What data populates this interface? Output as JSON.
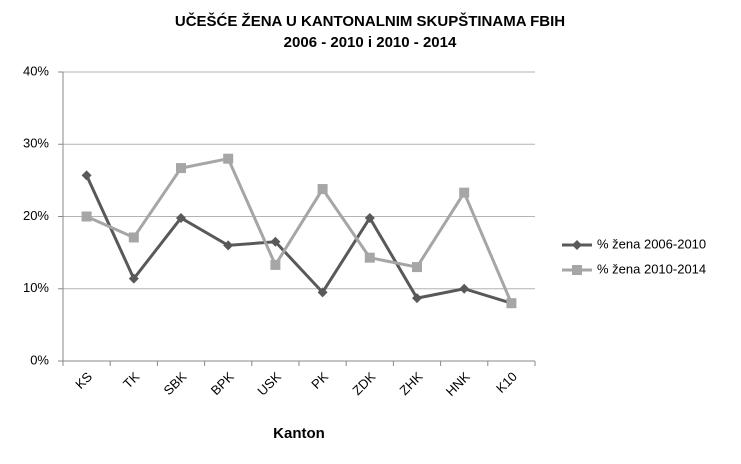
{
  "chart_data": {
    "type": "line",
    "title": [
      "UČEŠĆE ŽENA U KANTONALNIM  SKUPŠTINAMA  FBIH",
      "2006  - 2010  i 2010  - 2014"
    ],
    "x_label": "Kanton",
    "categories": [
      "KS",
      "TK",
      "SBK",
      "BPK",
      "USK",
      "PK",
      "ZDK",
      "ZHK",
      "HNK",
      "K10"
    ],
    "series": [
      {
        "name": "% žena 2006-2010",
        "color": "#595959",
        "marker": "diamond",
        "values": [
          25.7,
          11.4,
          19.8,
          16,
          16.5,
          9.5,
          19.8,
          8.7,
          10,
          8
        ]
      },
      {
        "name": "% žena 2010-2014",
        "color": "#a6a6a6",
        "marker": "square",
        "values": [
          20,
          17.1,
          26.7,
          28,
          13.3,
          23.8,
          14.3,
          13,
          23.3,
          8
        ]
      }
    ],
    "ylim": [
      0,
      40
    ],
    "yticks": [
      {
        "value": 0,
        "label": "0%"
      },
      {
        "value": 10,
        "label": "10%"
      },
      {
        "value": 20,
        "label": "20%"
      },
      {
        "value": 30,
        "label": "30%"
      },
      {
        "value": 40,
        "label": "40%"
      }
    ],
    "grid": true,
    "legend": "right"
  }
}
